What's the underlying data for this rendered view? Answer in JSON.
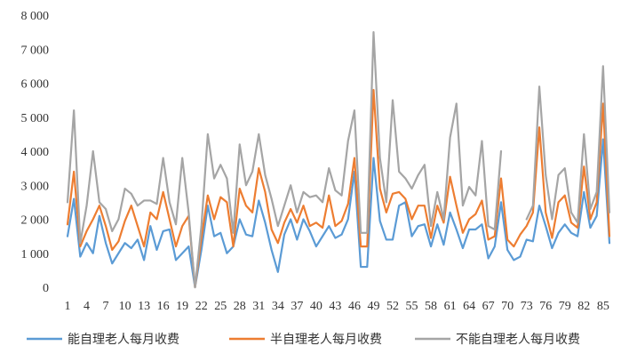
{
  "chart_data": {
    "type": "line",
    "title": "",
    "xlabel": "",
    "ylabel": "",
    "x": [
      1,
      2,
      3,
      4,
      5,
      6,
      7,
      8,
      9,
      10,
      11,
      12,
      13,
      14,
      15,
      16,
      17,
      18,
      19,
      20,
      21,
      22,
      23,
      24,
      25,
      26,
      27,
      28,
      29,
      30,
      31,
      32,
      33,
      34,
      35,
      36,
      37,
      38,
      39,
      40,
      41,
      42,
      43,
      44,
      45,
      46,
      47,
      48,
      49,
      50,
      51,
      52,
      53,
      54,
      55,
      56,
      57,
      58,
      59,
      60,
      61,
      62,
      63,
      64,
      65,
      66,
      67,
      68,
      69,
      70,
      71,
      72,
      73,
      74,
      75,
      76,
      77,
      78,
      79,
      80,
      81,
      82,
      83,
      84,
      85,
      86
    ],
    "x_tick_labels": [
      "1",
      "4",
      "7",
      "10",
      "13",
      "16",
      "19",
      "22",
      "25",
      "28",
      "31",
      "34",
      "37",
      "40",
      "43",
      "46",
      "49",
      "52",
      "55",
      "58",
      "61",
      "64",
      "67",
      "70",
      "73",
      "76",
      "79",
      "82",
      "85"
    ],
    "ylim": [
      0,
      8000
    ],
    "y_ticks": [
      0,
      1000,
      2000,
      3000,
      4000,
      5000,
      6000,
      7000,
      8000
    ],
    "y_tick_labels": [
      "0",
      "1 000",
      "2 000",
      "3 000",
      "4 000",
      "5 000",
      "6 000",
      "7 000",
      "8 000"
    ],
    "grid": false,
    "legend_position": "bottom",
    "series": [
      {
        "name": "能自理老人每月收费",
        "color": "#5B9BD5",
        "values": [
          1500,
          2600,
          900,
          1300,
          1000,
          2100,
          1300,
          700,
          1000,
          1300,
          1150,
          1400,
          800,
          1800,
          1100,
          1650,
          1700,
          800,
          1000,
          1200,
          0,
          1100,
          2400,
          1500,
          1600,
          1000,
          1200,
          2000,
          1550,
          1500,
          2550,
          1900,
          1100,
          450,
          1550,
          2000,
          1400,
          2000,
          1650,
          1200,
          1500,
          1800,
          1450,
          1550,
          2000,
          3400,
          600,
          600,
          3800,
          1950,
          1400,
          1400,
          2400,
          2500,
          1500,
          1800,
          1850,
          1200,
          1850,
          1250,
          2200,
          1700,
          1150,
          1700,
          1700,
          1850,
          850,
          1200,
          2500,
          1100,
          800,
          900,
          1400,
          1350,
          2400,
          1800,
          1150,
          1600,
          1850,
          1600,
          1500,
          2800,
          1750,
          2100,
          4350,
          1300
        ]
      },
      {
        "name": "半自理老人每月收费",
        "color": "#ED7D31",
        "values": [
          1850,
          3400,
          1200,
          1650,
          2000,
          2400,
          1800,
          1100,
          1350,
          1950,
          2400,
          1800,
          1200,
          2200,
          2000,
          2800,
          2000,
          1200,
          1800,
          2100,
          0,
          1450,
          2700,
          2000,
          2650,
          2500,
          1200,
          2900,
          2400,
          2200,
          3500,
          2800,
          1700,
          1300,
          1900,
          2300,
          1900,
          2400,
          1800,
          1900,
          1750,
          2700,
          1800,
          1950,
          2450,
          3800,
          1200,
          1200,
          5800,
          2900,
          2200,
          2750,
          2800,
          2600,
          2000,
          2400,
          2400,
          1450,
          2400,
          1900,
          3250,
          2400,
          1600,
          2000,
          2150,
          2550,
          1400,
          1500,
          3200,
          1400,
          1200,
          1550,
          1800,
          2200,
          4700,
          2200,
          1450,
          2500,
          2700,
          1900,
          1750,
          3550,
          2000,
          2500,
          5400,
          1500
        ]
      },
      {
        "name": "不能自理老人每月收费",
        "color": "#A5A5A5",
        "values": [
          2500,
          5200,
          1300,
          2400,
          4000,
          2500,
          2300,
          1650,
          2000,
          2900,
          2750,
          2400,
          2550,
          2550,
          2450,
          3800,
          2500,
          1850,
          3800,
          2200,
          0,
          1800,
          4500,
          3200,
          3600,
          3200,
          1600,
          4200,
          3000,
          3400,
          4500,
          3300,
          2600,
          1800,
          2400,
          3000,
          2200,
          2800,
          2650,
          2700,
          2500,
          3500,
          2850,
          2700,
          4300,
          5200,
          1600,
          1600,
          7500,
          3800,
          2500,
          5500,
          3400,
          3200,
          2900,
          3300,
          3600,
          1800,
          2800,
          2000,
          4400,
          5400,
          2400,
          2950,
          2700,
          4300,
          1800,
          1700,
          4000,
          null,
          null,
          null,
          2000,
          2400,
          5900,
          3300,
          2000,
          3300,
          3500,
          2200,
          1900,
          4500,
          2300,
          2800,
          6500,
          2200
        ]
      }
    ]
  }
}
